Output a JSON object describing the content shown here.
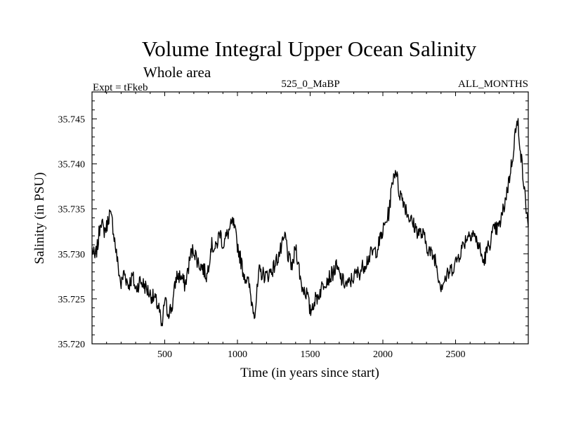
{
  "chart_data": {
    "type": "line",
    "title": "Volume Integral Upper Ocean Salinity",
    "subtitle": "Whole area",
    "annotations": {
      "left": "Expt = tFkeb",
      "center": "525_0_MaBP",
      "right": "ALL_MONTHS"
    },
    "xlabel": "Time (in years since start)",
    "ylabel": "Salinity (in PSU)",
    "xlim": [
      0,
      3000
    ],
    "ylim": [
      35.72,
      35.748
    ],
    "xticks": [
      "500",
      "1000",
      "1500",
      "2000",
      "2500"
    ],
    "yticks": [
      "35.720",
      "35.725",
      "35.730",
      "35.735",
      "35.740",
      "35.745"
    ],
    "grid": false,
    "line_color": "#000000",
    "series": [
      {
        "x": [
          0,
          20,
          40,
          60,
          80,
          100,
          120,
          140,
          160,
          180,
          200,
          220,
          250,
          280,
          300,
          330,
          360,
          400,
          430,
          460,
          480,
          500,
          520,
          550,
          580,
          610,
          640,
          680,
          700,
          730,
          760,
          790,
          820,
          850,
          880,
          900,
          940,
          970,
          1000,
          1040,
          1080,
          1100,
          1120,
          1150,
          1200,
          1250,
          1300,
          1330,
          1350,
          1380,
          1400,
          1440,
          1480,
          1500,
          1520,
          1560,
          1600,
          1640,
          1680,
          1720,
          1760,
          1800,
          1840,
          1880,
          1920,
          1960,
          2000,
          2040,
          2070,
          2090,
          2110,
          2140,
          2170,
          2200,
          2240,
          2280,
          2300,
          2330,
          2360,
          2390,
          2400,
          2420,
          2460,
          2500,
          2540,
          2580,
          2620,
          2640,
          2660,
          2690,
          2720,
          2760,
          2800,
          2830,
          2860,
          2890,
          2910,
          2930,
          2950,
          2970,
          3000
        ],
        "y": [
          35.7305,
          35.7295,
          35.731,
          35.734,
          35.7325,
          35.733,
          35.7345,
          35.7335,
          35.731,
          35.7285,
          35.7265,
          35.728,
          35.7265,
          35.7275,
          35.726,
          35.727,
          35.7265,
          35.7255,
          35.725,
          35.724,
          35.7215,
          35.725,
          35.7235,
          35.724,
          35.7275,
          35.7275,
          35.7265,
          35.73,
          35.7305,
          35.729,
          35.7285,
          35.7275,
          35.731,
          35.7305,
          35.7325,
          35.731,
          35.7325,
          35.7335,
          35.731,
          35.728,
          35.7265,
          35.7245,
          35.7235,
          35.728,
          35.7275,
          35.7285,
          35.7305,
          35.732,
          35.7295,
          35.7285,
          35.731,
          35.7265,
          35.7255,
          35.7235,
          35.7245,
          35.7255,
          35.727,
          35.7275,
          35.7285,
          35.727,
          35.7265,
          35.7275,
          35.728,
          35.729,
          35.73,
          35.7305,
          35.7325,
          35.7345,
          35.7385,
          35.7395,
          35.737,
          35.736,
          35.7345,
          35.7335,
          35.7325,
          35.732,
          35.731,
          35.73,
          35.7295,
          35.727,
          35.7265,
          35.727,
          35.728,
          35.729,
          35.7305,
          35.732,
          35.7325,
          35.7315,
          35.731,
          35.729,
          35.7305,
          35.7325,
          35.733,
          35.735,
          35.7375,
          35.7405,
          35.7435,
          35.7445,
          35.741,
          35.7375,
          35.733
        ]
      }
    ]
  }
}
